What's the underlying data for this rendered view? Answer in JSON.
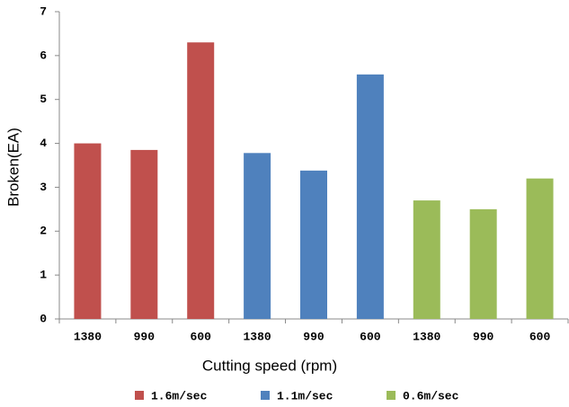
{
  "chart_data": {
    "type": "bar",
    "x_label": "Cutting speed (rpm)",
    "y_label": "Broken(EA)",
    "categories": [
      "1380",
      "990",
      "600",
      "1380",
      "990",
      "600",
      "1380",
      "990",
      "600"
    ],
    "series": [
      {
        "name": "1.6m/sec",
        "color": "#c0504d",
        "values": [
          4.0,
          3.85,
          6.3,
          null,
          null,
          null,
          null,
          null,
          null
        ]
      },
      {
        "name": "1.1m/sec",
        "color": "#4f81bd",
        "values": [
          null,
          null,
          null,
          3.78,
          3.38,
          5.57,
          null,
          null,
          null
        ]
      },
      {
        "name": "0.6m/sec",
        "color": "#9bbb59",
        "values": [
          null,
          null,
          null,
          null,
          null,
          null,
          2.7,
          2.5,
          3.2
        ]
      }
    ],
    "ylim": [
      0,
      7
    ],
    "yticks": [
      0,
      1,
      2,
      3,
      4,
      5,
      6,
      7
    ],
    "grid": false
  }
}
